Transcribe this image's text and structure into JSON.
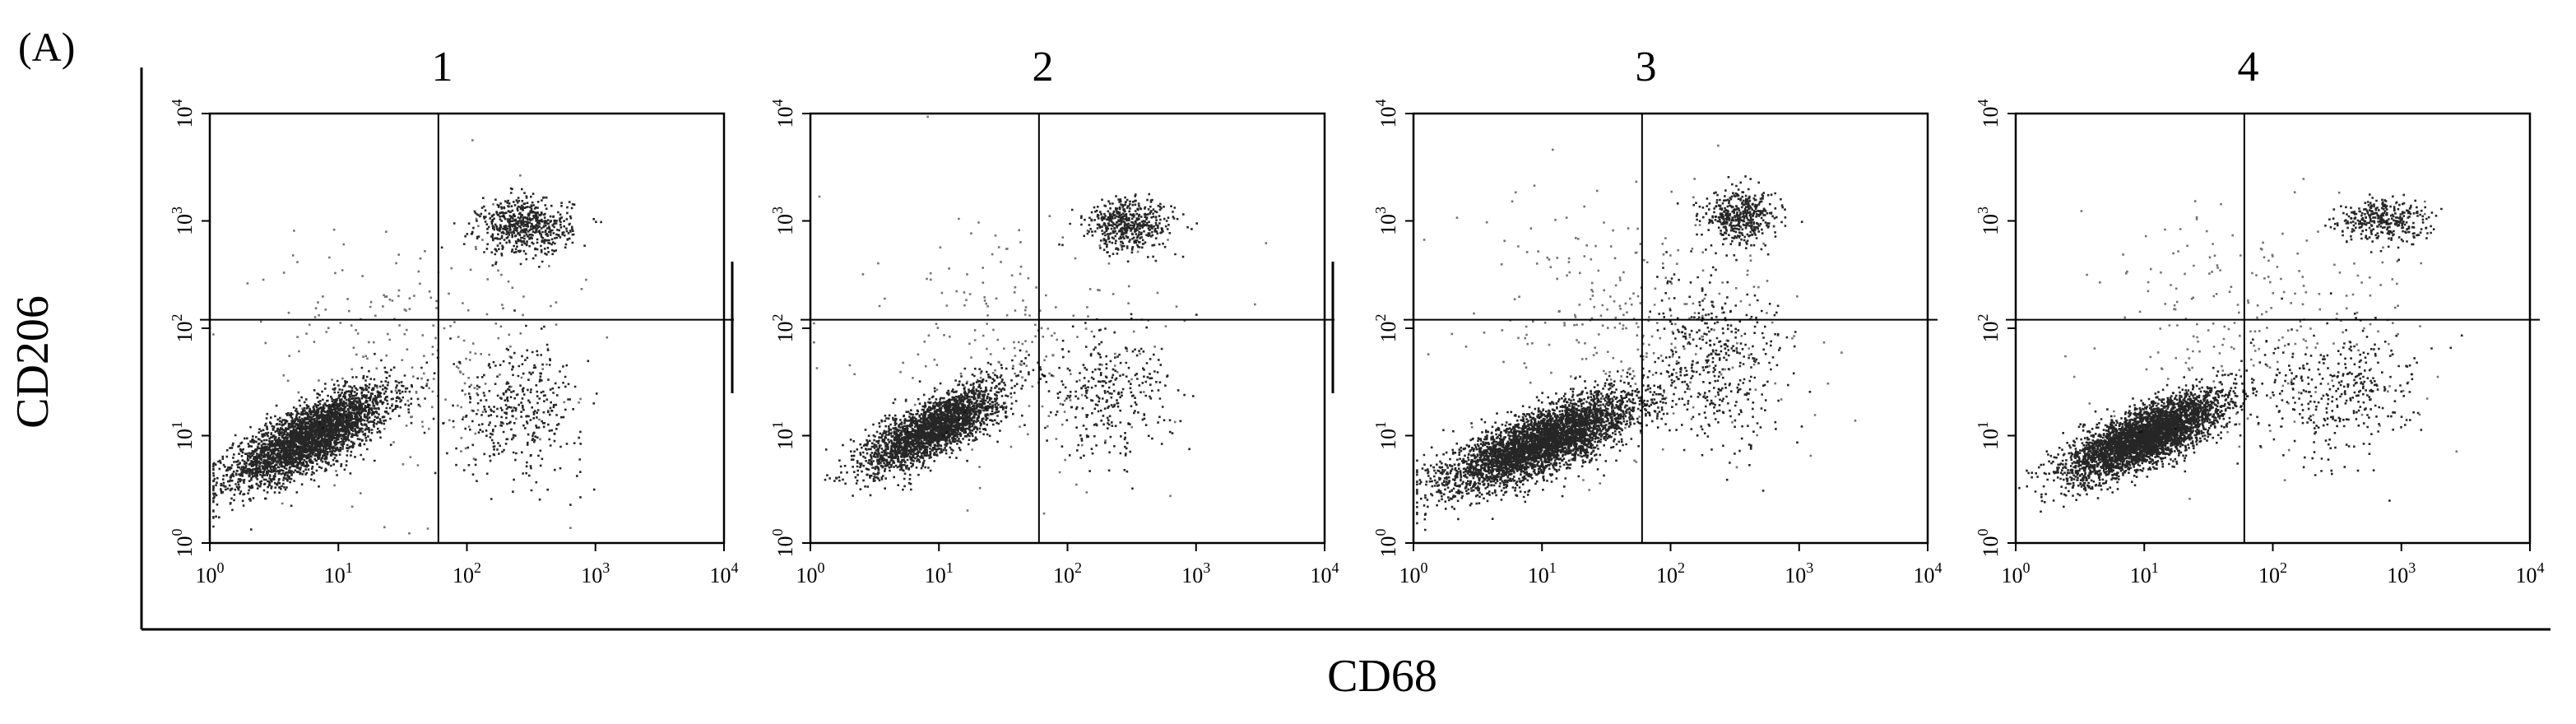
{
  "figure": {
    "panel_label": "(A)",
    "ylabel": "CD206",
    "xlabel": "CD68"
  },
  "chart_data": [
    {
      "type": "scatter",
      "title": "1",
      "x_scale": "log",
      "y_scale": "log",
      "xlim": [
        1,
        10000
      ],
      "ylim": [
        1,
        10000
      ],
      "x_ticks": [
        1,
        10,
        100,
        1000,
        10000
      ],
      "y_ticks": [
        1,
        10,
        100,
        1000,
        10000
      ],
      "quadrant_gate": {
        "x": 60,
        "y": 120
      },
      "populations": [
        {
          "name": "double-negative cluster",
          "center": [
            6,
            10
          ],
          "count": 3500,
          "spread": [
            0.3,
            0.22
          ]
        },
        {
          "name": "double-positive cluster",
          "center": [
            280,
            900
          ],
          "count": 600,
          "spread": [
            0.18,
            0.13
          ]
        },
        {
          "name": "CD68+ scatter",
          "center": [
            250,
            18
          ],
          "count": 350,
          "spread": [
            0.25,
            0.3
          ]
        },
        {
          "name": "background",
          "center": [
            40,
            60
          ],
          "count": 250,
          "spread": [
            0.6,
            0.6
          ]
        }
      ]
    },
    {
      "type": "scatter",
      "title": "2",
      "x_scale": "log",
      "y_scale": "log",
      "xlim": [
        1,
        10000
      ],
      "ylim": [
        1,
        10000
      ],
      "x_ticks": [
        1,
        10,
        100,
        1000,
        10000
      ],
      "y_ticks": [
        1,
        10,
        100,
        1000,
        10000
      ],
      "quadrant_gate": {
        "x": 60,
        "y": 120
      },
      "populations": [
        {
          "name": "double-negative cluster",
          "center": [
            9,
            12
          ],
          "count": 2600,
          "spread": [
            0.26,
            0.2
          ]
        },
        {
          "name": "double-positive cluster",
          "center": [
            300,
            950
          ],
          "count": 500,
          "spread": [
            0.17,
            0.12
          ]
        },
        {
          "name": "CD68+ scatter",
          "center": [
            200,
            25
          ],
          "count": 300,
          "spread": [
            0.25,
            0.3
          ]
        },
        {
          "name": "background",
          "center": [
            40,
            60
          ],
          "count": 220,
          "spread": [
            0.6,
            0.6
          ]
        }
      ]
    },
    {
      "type": "scatter",
      "title": "3",
      "x_scale": "log",
      "y_scale": "log",
      "xlim": [
        1,
        10000
      ],
      "ylim": [
        1,
        10000
      ],
      "x_ticks": [
        1,
        10,
        100,
        1000,
        10000
      ],
      "y_ticks": [
        1,
        10,
        100,
        1000,
        10000
      ],
      "quadrant_gate": {
        "x": 60,
        "y": 120
      },
      "populations": [
        {
          "name": "double-negative cluster",
          "center": [
            10,
            9
          ],
          "count": 4200,
          "spread": [
            0.36,
            0.22
          ]
        },
        {
          "name": "double-positive cluster",
          "center": [
            350,
            1100
          ],
          "count": 450,
          "spread": [
            0.14,
            0.13
          ]
        },
        {
          "name": "CD68+ scatter",
          "center": [
            220,
            50
          ],
          "count": 420,
          "spread": [
            0.28,
            0.4
          ]
        },
        {
          "name": "background",
          "center": [
            60,
            100
          ],
          "count": 300,
          "spread": [
            0.6,
            0.6
          ]
        }
      ]
    },
    {
      "type": "scatter",
      "title": "4",
      "x_scale": "log",
      "y_scale": "log",
      "xlim": [
        1,
        10000
      ],
      "ylim": [
        1,
        10000
      ],
      "x_ticks": [
        1,
        10,
        100,
        1000,
        10000
      ],
      "y_ticks": [
        1,
        10,
        100,
        1000,
        10000
      ],
      "quadrant_gate": {
        "x": 60,
        "y": 120
      },
      "populations": [
        {
          "name": "double-negative cluster",
          "center": [
            10,
            10
          ],
          "count": 4000,
          "spread": [
            0.3,
            0.2
          ]
        },
        {
          "name": "double-positive cluster",
          "center": [
            700,
            1000
          ],
          "count": 350,
          "spread": [
            0.17,
            0.1
          ]
        },
        {
          "name": "CD68+ scatter",
          "center": [
            300,
            25
          ],
          "count": 350,
          "spread": [
            0.3,
            0.3
          ]
        },
        {
          "name": "background",
          "center": [
            80,
            100
          ],
          "count": 250,
          "spread": [
            0.6,
            0.6
          ]
        }
      ]
    }
  ]
}
